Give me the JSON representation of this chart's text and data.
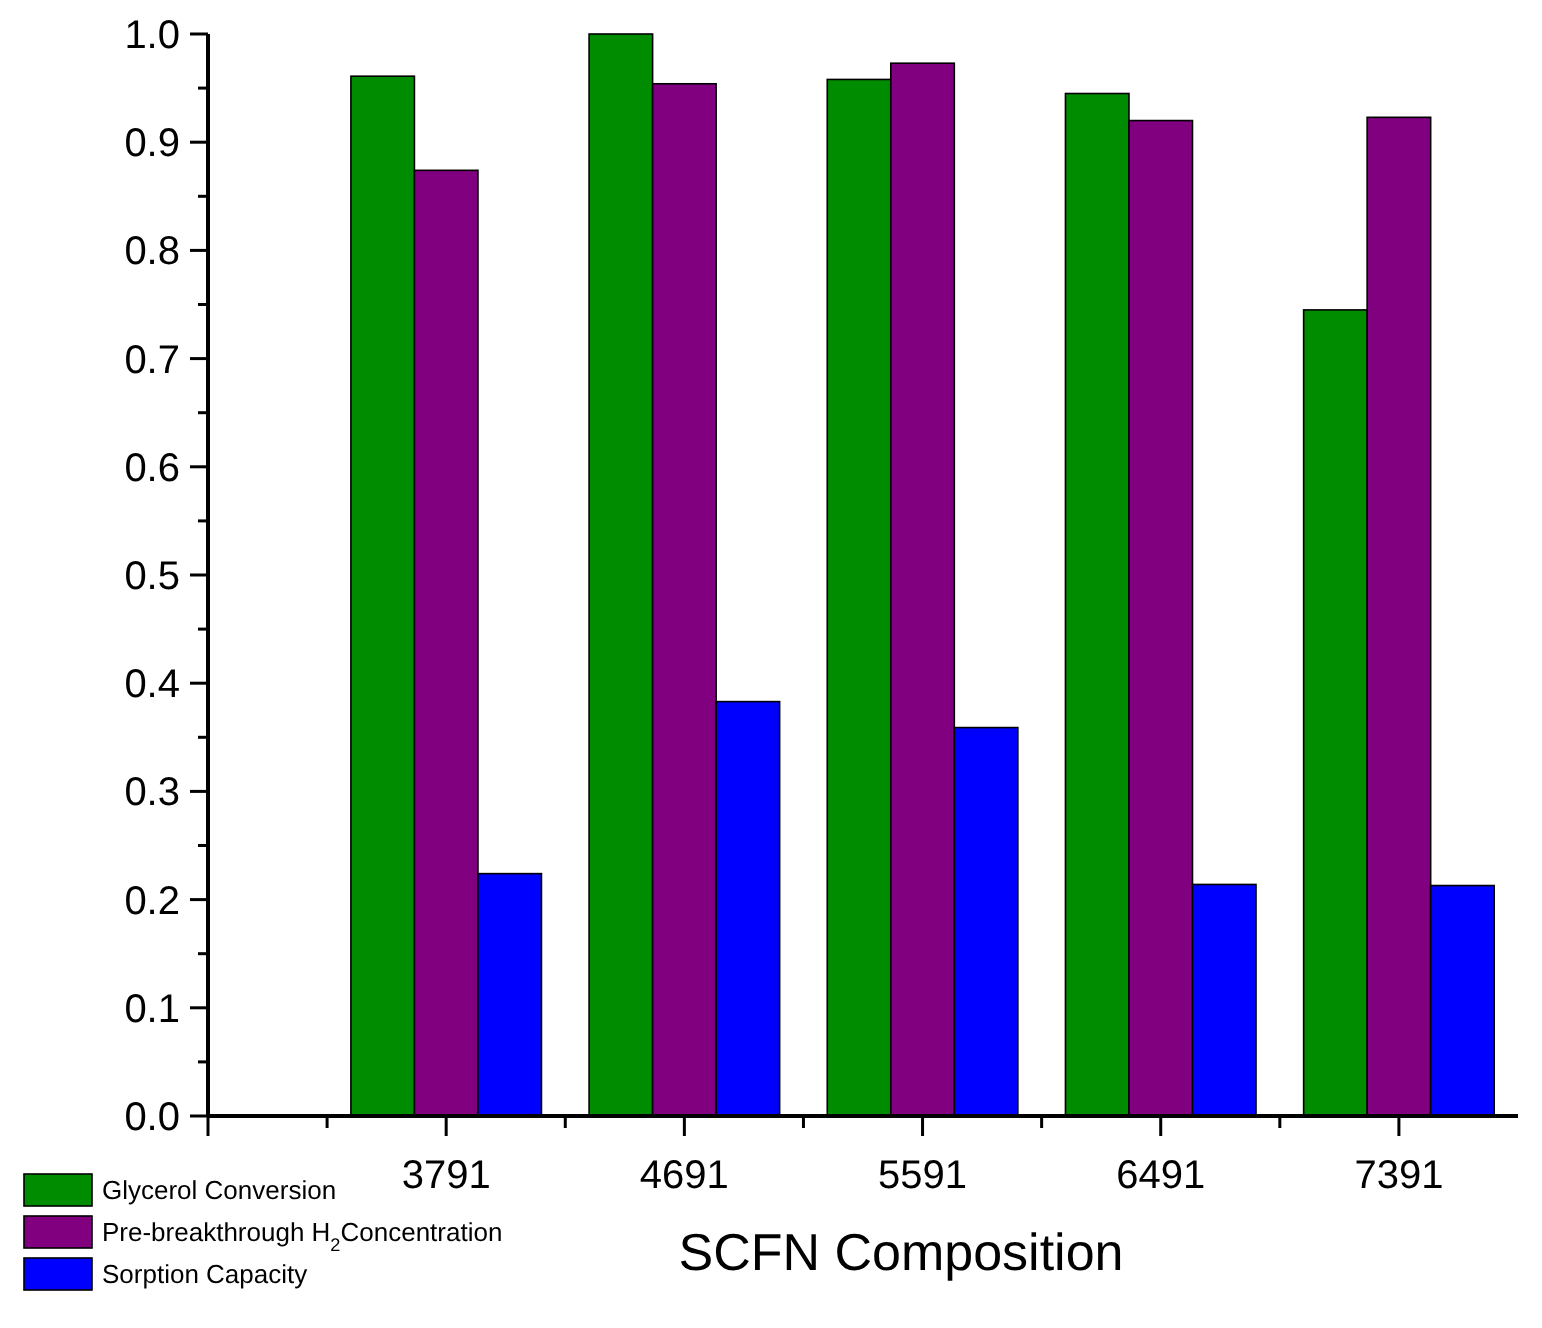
{
  "chart_data": {
    "type": "bar",
    "xlabel": "SCFN Composition",
    "categories": [
      null,
      "3791",
      "4691",
      "5591",
      "6491",
      "7391"
    ],
    "series": [
      {
        "name": "Glycerol Conversion",
        "color": "#008c00",
        "values": [
          null,
          0.961,
          1.0,
          0.958,
          0.945,
          0.745
        ]
      },
      {
        "name": "Pre-breakthrough H$_{2}$Concentration",
        "color": "#800080",
        "values": [
          null,
          0.874,
          0.954,
          0.973,
          0.92,
          0.923
        ]
      },
      {
        "name": "Sorption Capacity",
        "color": "#0000ff",
        "values": [
          null,
          0.224,
          0.383,
          0.359,
          0.214,
          0.213
        ]
      }
    ],
    "ylim": [
      0,
      1.0
    ],
    "yticks": [
      {
        "value": 0,
        "label": "0.0"
      },
      {
        "value": 0.05,
        "label": null
      },
      0.1,
      {
        "value": 0.15,
        "label": null
      },
      0.2,
      {
        "value": 0.25,
        "label": null
      },
      0.3,
      {
        "value": 0.35,
        "label": null
      },
      0.4,
      {
        "value": 0.45,
        "label": null
      },
      0.5,
      {
        "value": 0.55,
        "label": null
      },
      0.6,
      {
        "value": 0.65,
        "label": null
      },
      0.7,
      {
        "value": 0.75,
        "label": null
      },
      0.8,
      {
        "value": 0.85,
        "label": null
      },
      0.9,
      {
        "value": 0.95,
        "label": null
      },
      {
        "value": 1.0,
        "label": "1.0"
      }
    ],
    "legend": "bottom left",
    "grid": false
  }
}
